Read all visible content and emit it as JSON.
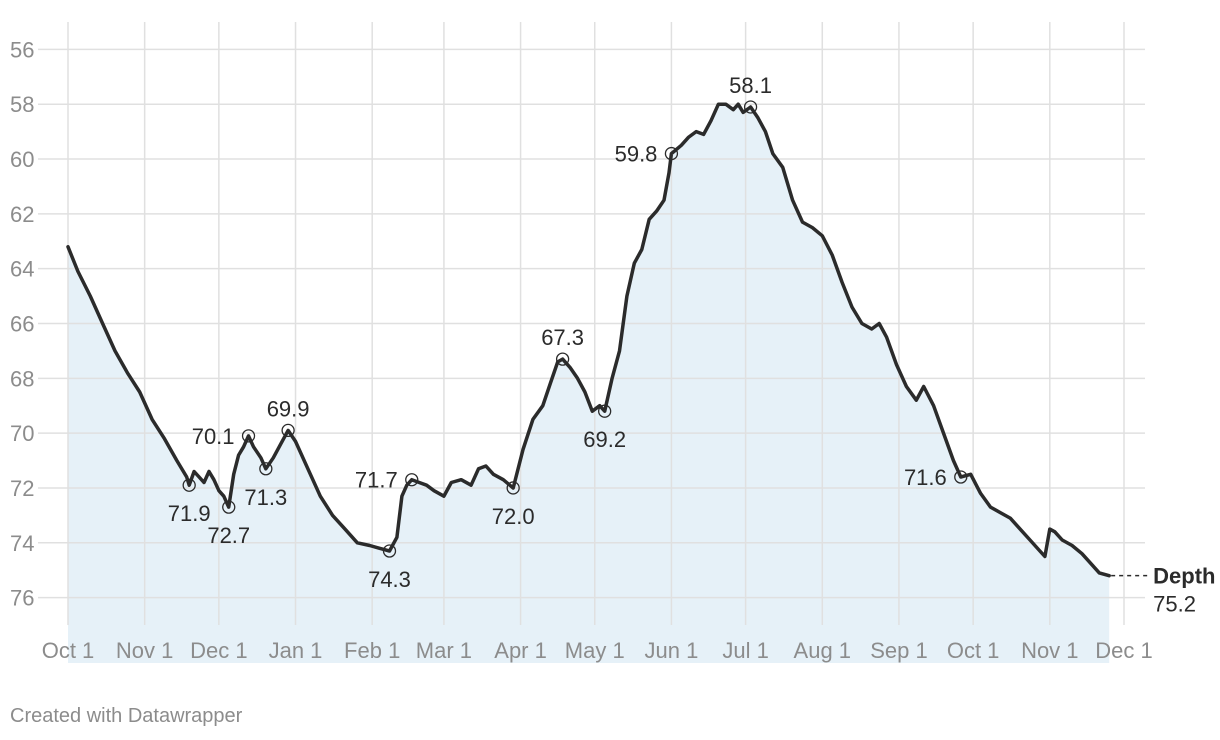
{
  "credit": "Created with Datawrapper",
  "colors": {
    "line": "#2b2b2b",
    "area": "#e6f1f8",
    "grid": "#e0e0e0",
    "tick_text": "#8c8c8c",
    "label_text": "#2b2b2b",
    "background": "#ffffff"
  },
  "chart_data": {
    "type": "line",
    "title": "",
    "xlabel": "",
    "ylabel": "",
    "y_axis_reversed": true,
    "ylim": [
      77,
      55
    ],
    "yticks": [
      56,
      58,
      60,
      62,
      64,
      66,
      68,
      70,
      72,
      74,
      76
    ],
    "xticks": [
      {
        "date": "2023-10-01",
        "label": "Oct 1"
      },
      {
        "date": "2023-11-01",
        "label": "Nov 1"
      },
      {
        "date": "2023-12-01",
        "label": "Dec 1"
      },
      {
        "date": "2024-01-01",
        "label": "Jan 1"
      },
      {
        "date": "2024-02-01",
        "label": "Feb 1"
      },
      {
        "date": "2024-03-01",
        "label": "Mar 1"
      },
      {
        "date": "2024-04-01",
        "label": "Apr 1"
      },
      {
        "date": "2024-05-01",
        "label": "May 1"
      },
      {
        "date": "2024-06-01",
        "label": "Jun 1"
      },
      {
        "date": "2024-07-01",
        "label": "Jul 1"
      },
      {
        "date": "2024-08-01",
        "label": "Aug 1"
      },
      {
        "date": "2024-09-01",
        "label": "Sep 1"
      },
      {
        "date": "2024-10-01",
        "label": "Oct 1"
      },
      {
        "date": "2024-11-01",
        "label": "Nov 1"
      },
      {
        "date": "2024-12-01",
        "label": "Dec 1"
      }
    ],
    "grid": true,
    "area_fill": true,
    "series": [
      {
        "name": "Depth",
        "end_value_label": "75.2",
        "points": [
          [
            "2023-10-01",
            63.2
          ],
          [
            "2023-10-05",
            64.1
          ],
          [
            "2023-10-10",
            65.0
          ],
          [
            "2023-10-15",
            66.0
          ],
          [
            "2023-10-20",
            67.0
          ],
          [
            "2023-10-25",
            67.8
          ],
          [
            "2023-10-30",
            68.5
          ],
          [
            "2023-11-04",
            69.5
          ],
          [
            "2023-11-09",
            70.2
          ],
          [
            "2023-11-14",
            71.0
          ],
          [
            "2023-11-18",
            71.6
          ],
          [
            "2023-11-19",
            71.9
          ],
          [
            "2023-11-21",
            71.4
          ],
          [
            "2023-11-23",
            71.6
          ],
          [
            "2023-11-25",
            71.8
          ],
          [
            "2023-11-27",
            71.4
          ],
          [
            "2023-11-29",
            71.7
          ],
          [
            "2023-12-01",
            72.1
          ],
          [
            "2023-12-03",
            72.3
          ],
          [
            "2023-12-05",
            72.7
          ],
          [
            "2023-12-07",
            71.5
          ],
          [
            "2023-12-09",
            70.8
          ],
          [
            "2023-12-11",
            70.5
          ],
          [
            "2023-12-13",
            70.1
          ],
          [
            "2023-12-15",
            70.5
          ],
          [
            "2023-12-18",
            70.9
          ],
          [
            "2023-12-20",
            71.3
          ],
          [
            "2023-12-23",
            70.9
          ],
          [
            "2023-12-26",
            70.4
          ],
          [
            "2023-12-29",
            69.9
          ],
          [
            "2024-01-01",
            70.3
          ],
          [
            "2024-01-06",
            71.3
          ],
          [
            "2024-01-11",
            72.3
          ],
          [
            "2024-01-16",
            73.0
          ],
          [
            "2024-01-21",
            73.5
          ],
          [
            "2024-01-26",
            74.0
          ],
          [
            "2024-01-31",
            74.1
          ],
          [
            "2024-02-04",
            74.2
          ],
          [
            "2024-02-08",
            74.3
          ],
          [
            "2024-02-11",
            73.8
          ],
          [
            "2024-02-13",
            72.3
          ],
          [
            "2024-02-15",
            71.9
          ],
          [
            "2024-02-17",
            71.7
          ],
          [
            "2024-02-20",
            71.8
          ],
          [
            "2024-02-23",
            71.9
          ],
          [
            "2024-02-26",
            72.1
          ],
          [
            "2024-03-01",
            72.3
          ],
          [
            "2024-03-04",
            71.8
          ],
          [
            "2024-03-08",
            71.7
          ],
          [
            "2024-03-12",
            71.9
          ],
          [
            "2024-03-15",
            71.3
          ],
          [
            "2024-03-18",
            71.2
          ],
          [
            "2024-03-21",
            71.5
          ],
          [
            "2024-03-25",
            71.7
          ],
          [
            "2024-03-29",
            72.0
          ],
          [
            "2024-04-02",
            70.6
          ],
          [
            "2024-04-06",
            69.5
          ],
          [
            "2024-04-10",
            69.0
          ],
          [
            "2024-04-13",
            68.2
          ],
          [
            "2024-04-16",
            67.4
          ],
          [
            "2024-04-18",
            67.3
          ],
          [
            "2024-04-21",
            67.6
          ],
          [
            "2024-04-24",
            68.0
          ],
          [
            "2024-04-27",
            68.5
          ],
          [
            "2024-04-30",
            69.2
          ],
          [
            "2024-05-03",
            69.0
          ],
          [
            "2024-05-05",
            69.2
          ],
          [
            "2024-05-08",
            68.0
          ],
          [
            "2024-05-11",
            67.0
          ],
          [
            "2024-05-14",
            65.0
          ],
          [
            "2024-05-17",
            63.8
          ],
          [
            "2024-05-20",
            63.3
          ],
          [
            "2024-05-23",
            62.2
          ],
          [
            "2024-05-26",
            61.9
          ],
          [
            "2024-05-29",
            61.5
          ],
          [
            "2024-05-31",
            60.5
          ],
          [
            "2024-06-01",
            59.8
          ],
          [
            "2024-06-05",
            59.5
          ],
          [
            "2024-06-08",
            59.2
          ],
          [
            "2024-06-11",
            59.0
          ],
          [
            "2024-06-14",
            59.1
          ],
          [
            "2024-06-17",
            58.6
          ],
          [
            "2024-06-20",
            58.0
          ],
          [
            "2024-06-23",
            58.0
          ],
          [
            "2024-06-26",
            58.2
          ],
          [
            "2024-06-28",
            58.0
          ],
          [
            "2024-06-30",
            58.3
          ],
          [
            "2024-07-03",
            58.1
          ],
          [
            "2024-07-06",
            58.5
          ],
          [
            "2024-07-09",
            59.0
          ],
          [
            "2024-07-12",
            59.8
          ],
          [
            "2024-07-16",
            60.3
          ],
          [
            "2024-07-20",
            61.5
          ],
          [
            "2024-07-24",
            62.3
          ],
          [
            "2024-07-28",
            62.5
          ],
          [
            "2024-08-01",
            62.8
          ],
          [
            "2024-08-05",
            63.5
          ],
          [
            "2024-08-09",
            64.5
          ],
          [
            "2024-08-13",
            65.4
          ],
          [
            "2024-08-17",
            66.0
          ],
          [
            "2024-08-21",
            66.2
          ],
          [
            "2024-08-24",
            66.0
          ],
          [
            "2024-08-27",
            66.5
          ],
          [
            "2024-08-31",
            67.5
          ],
          [
            "2024-09-04",
            68.3
          ],
          [
            "2024-09-08",
            68.8
          ],
          [
            "2024-09-11",
            68.3
          ],
          [
            "2024-09-15",
            69.0
          ],
          [
            "2024-09-19",
            70.0
          ],
          [
            "2024-09-23",
            71.0
          ],
          [
            "2024-09-26",
            71.6
          ],
          [
            "2024-09-30",
            71.5
          ],
          [
            "2024-10-04",
            72.2
          ],
          [
            "2024-10-08",
            72.7
          ],
          [
            "2024-10-12",
            72.9
          ],
          [
            "2024-10-16",
            73.1
          ],
          [
            "2024-10-20",
            73.5
          ],
          [
            "2024-10-24",
            73.9
          ],
          [
            "2024-10-28",
            74.3
          ],
          [
            "2024-10-30",
            74.5
          ],
          [
            "2024-11-01",
            73.5
          ],
          [
            "2024-11-03",
            73.6
          ],
          [
            "2024-11-06",
            73.9
          ],
          [
            "2024-11-10",
            74.1
          ],
          [
            "2024-11-14",
            74.4
          ],
          [
            "2024-11-18",
            74.8
          ],
          [
            "2024-11-21",
            75.1
          ],
          [
            "2024-11-25",
            75.2
          ]
        ]
      }
    ],
    "annotations": [
      {
        "date": "2023-11-19",
        "value": 71.9,
        "label": "71.9",
        "position": "below"
      },
      {
        "date": "2023-12-05",
        "value": 72.7,
        "label": "72.7",
        "position": "below"
      },
      {
        "date": "2023-12-13",
        "value": 70.1,
        "label": "70.1",
        "position": "left"
      },
      {
        "date": "2023-12-20",
        "value": 71.3,
        "label": "71.3",
        "position": "below"
      },
      {
        "date": "2023-12-29",
        "value": 69.9,
        "label": "69.9",
        "position": "above"
      },
      {
        "date": "2024-02-08",
        "value": 74.3,
        "label": "74.3",
        "position": "below"
      },
      {
        "date": "2024-02-17",
        "value": 71.7,
        "label": "71.7",
        "position": "left"
      },
      {
        "date": "2024-03-29",
        "value": 72.0,
        "label": "72.0",
        "position": "below"
      },
      {
        "date": "2024-04-18",
        "value": 67.3,
        "label": "67.3",
        "position": "above"
      },
      {
        "date": "2024-05-05",
        "value": 69.2,
        "label": "69.2",
        "position": "below"
      },
      {
        "date": "2024-06-01",
        "value": 59.8,
        "label": "59.8",
        "position": "left"
      },
      {
        "date": "2024-07-03",
        "value": 58.1,
        "label": "58.1",
        "position": "above"
      },
      {
        "date": "2024-09-26",
        "value": 71.6,
        "label": "71.6",
        "position": "left"
      }
    ]
  }
}
